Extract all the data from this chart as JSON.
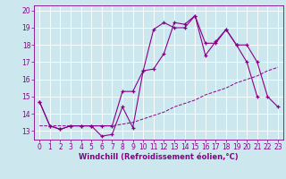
{
  "xlabel": "Windchill (Refroidissement éolien,°C)",
  "background_color": "#cce8ee",
  "grid_color": "#ffffff",
  "line_color": "#880088",
  "xlim": [
    -0.5,
    23.5
  ],
  "ylim": [
    12.5,
    20.3
  ],
  "yticks": [
    13,
    14,
    15,
    16,
    17,
    18,
    19,
    20
  ],
  "xticks": [
    0,
    1,
    2,
    3,
    4,
    5,
    6,
    7,
    8,
    9,
    10,
    11,
    12,
    13,
    14,
    15,
    16,
    17,
    18,
    19,
    20,
    21,
    22,
    23
  ],
  "line1_x": [
    0,
    1,
    2,
    3,
    4,
    5,
    6,
    7,
    8,
    9,
    10,
    11,
    12,
    13,
    14,
    15,
    16,
    17,
    18,
    19,
    20,
    21
  ],
  "line1_y": [
    14.7,
    13.3,
    13.1,
    13.3,
    13.3,
    13.3,
    12.7,
    12.8,
    14.4,
    13.2,
    16.5,
    18.9,
    19.3,
    19.0,
    19.0,
    19.7,
    18.1,
    18.1,
    18.9,
    18.0,
    17.0,
    15.0
  ],
  "line2_x": [
    0,
    1,
    2,
    3,
    4,
    5,
    6,
    7,
    8,
    9,
    10,
    11,
    12,
    13,
    14,
    15,
    16,
    17,
    18,
    19,
    20,
    21,
    22,
    23
  ],
  "line2_y": [
    13.3,
    13.3,
    13.3,
    13.3,
    13.3,
    13.3,
    13.3,
    13.3,
    13.4,
    13.5,
    13.7,
    13.9,
    14.1,
    14.4,
    14.6,
    14.8,
    15.1,
    15.3,
    15.5,
    15.8,
    16.0,
    16.2,
    16.5,
    16.7
  ],
  "line3_x": [
    0,
    1,
    2,
    3,
    4,
    5,
    6,
    7,
    8,
    9,
    10,
    11,
    12,
    13,
    14,
    15,
    16,
    17,
    18,
    19,
    20,
    21,
    22,
    23
  ],
  "line3_y": [
    14.7,
    13.3,
    13.1,
    13.3,
    13.3,
    13.3,
    13.3,
    13.3,
    15.3,
    15.3,
    16.5,
    16.6,
    17.5,
    19.3,
    19.2,
    19.7,
    17.4,
    18.2,
    18.9,
    18.0,
    18.0,
    17.0,
    15.0,
    14.4
  ],
  "tick_fontsize": 5.5,
  "xlabel_fontsize": 6.0
}
